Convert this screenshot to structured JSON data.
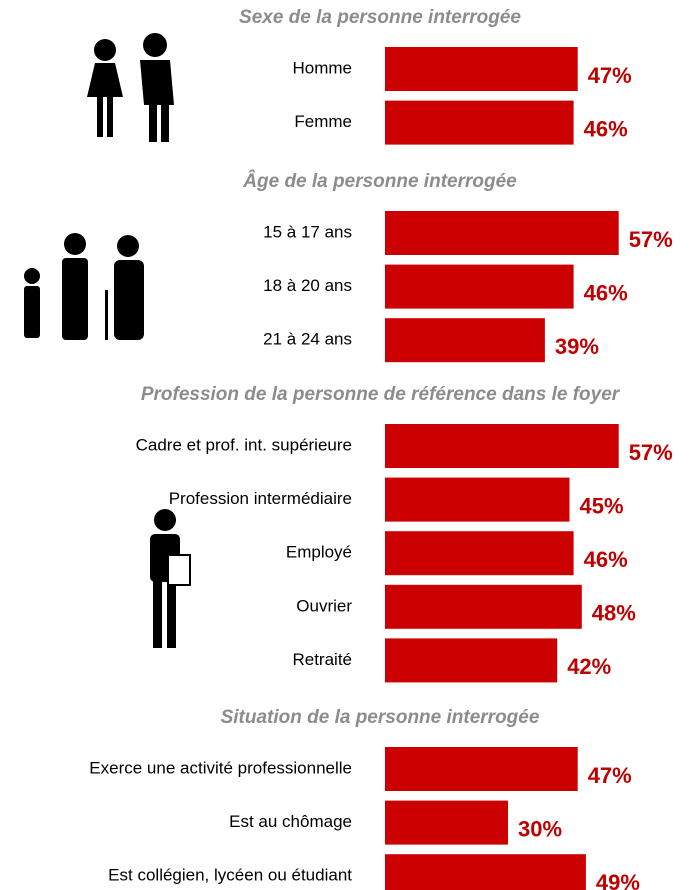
{
  "chart_data": [
    {
      "type": "bar",
      "orientation": "horizontal",
      "title": "Sexe de la personne interrogée",
      "categories": [
        "Homme",
        "Femme"
      ],
      "values": [
        47,
        46
      ],
      "value_labels": [
        "47%",
        "46%"
      ],
      "color": "#cc0000"
    },
    {
      "type": "bar",
      "orientation": "horizontal",
      "title": "Âge de la personne interrogée",
      "categories": [
        "15 à 17 ans",
        "18 à 20 ans",
        "21 à 24 ans"
      ],
      "values": [
        57,
        46,
        39
      ],
      "value_labels": [
        "57%",
        "46%",
        "39%"
      ],
      "color": "#cc0000"
    },
    {
      "type": "bar",
      "orientation": "horizontal",
      "title": "Profession de la personne de référence dans le foyer",
      "categories": [
        "Cadre et prof. int. supérieure",
        "Profession intermédiaire",
        "Employé",
        "Ouvrier",
        "Retraité"
      ],
      "values": [
        57,
        45,
        46,
        48,
        42
      ],
      "value_labels": [
        "57%",
        "45%",
        "46%",
        "48%",
        "42%"
      ],
      "color": "#cc0000"
    },
    {
      "type": "bar",
      "orientation": "horizontal",
      "title": "Situation de la personne interrogée",
      "categories": [
        "Exerce une activité professionnelle",
        "Est au chômage",
        "Est collégien, lycéen ou étudiant"
      ],
      "values": [
        47,
        30,
        49
      ],
      "value_labels": [
        "47%",
        "30%",
        "49%"
      ],
      "color": "#cc0000"
    }
  ]
}
